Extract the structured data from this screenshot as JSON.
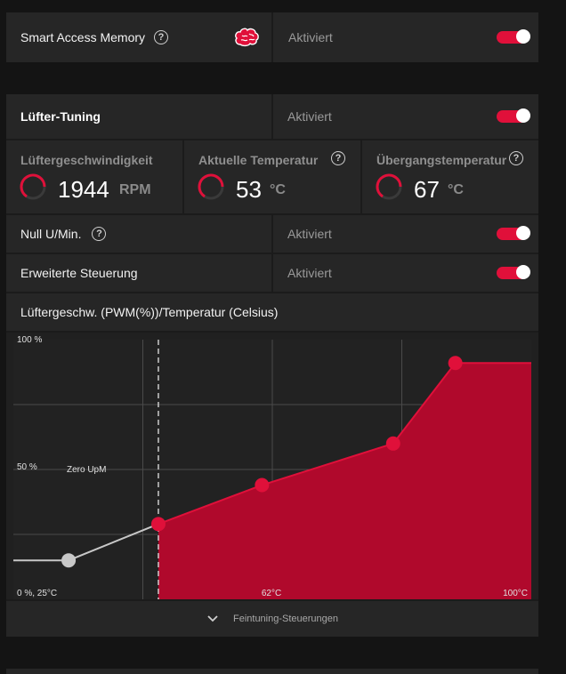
{
  "sam": {
    "label": "Smart Access Memory",
    "status": "Aktiviert",
    "help_icon": "help-circle-icon",
    "brain_icon": "brain-icon"
  },
  "fan": {
    "title": "Lüfter-Tuning",
    "status": "Aktiviert",
    "metrics": [
      {
        "title": "Lüftergeschwindigkeit",
        "value": "1944",
        "unit": "RPM"
      },
      {
        "title": "Aktuelle Temperatur",
        "value": "53",
        "unit": "°C"
      },
      {
        "title": "Übergangstemperatur",
        "value": "67",
        "unit": "°C"
      }
    ],
    "zero_rpm": {
      "label": "Null U/Min.",
      "status": "Aktiviert"
    },
    "advanced": {
      "label": "Erweiterte Steuerung",
      "status": "Aktiviert"
    },
    "curve_title": "Lüftergeschw. (PWM(%))/Temperatur (Celsius)",
    "fine_tuning_label": "Feintuning-Steuerungen"
  },
  "chart_data": {
    "type": "area",
    "y_tick_labels": [
      "100 %",
      "50 %"
    ],
    "x_tick_labels": [
      "62°C",
      "100°C"
    ],
    "origin_label": "0 %, 25°C",
    "annotation": "Zero UpM",
    "xlim": [
      25,
      100
    ],
    "ylim": [
      0,
      100
    ],
    "points": [
      {
        "x": 25,
        "y": 15
      },
      {
        "x": 33,
        "y": 15
      },
      {
        "x": 46,
        "y": 29
      },
      {
        "x": 61,
        "y": 44
      },
      {
        "x": 80,
        "y": 60
      },
      {
        "x": 89,
        "y": 91
      },
      {
        "x": 100,
        "y": 91
      }
    ],
    "zero_rpm_until_x": 46,
    "colors": {
      "fill": "#b0092c",
      "line": "#e0103a",
      "gray_line": "#c8c8c8",
      "grid": "#4a4a4a"
    }
  }
}
